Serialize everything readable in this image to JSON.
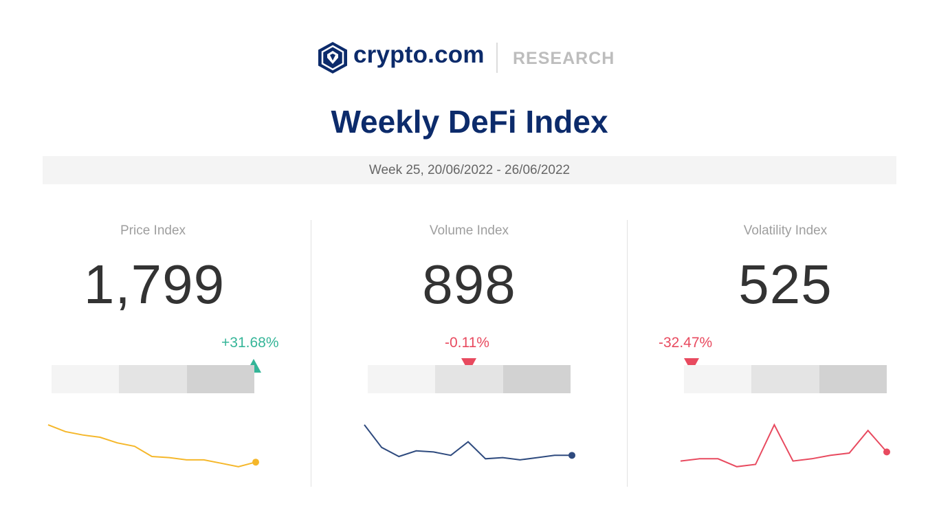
{
  "brand": {
    "name": "crypto.com",
    "section": "RESEARCH"
  },
  "title": "Weekly DeFi Index",
  "week": "Week 25, 20/06/2022 - 26/06/2022",
  "colors": {
    "navy": "#0c2b6b",
    "up": "#35b598",
    "down": "#e84a5f",
    "price_line": "#f5b72a",
    "volume_line": "#2e4a7e",
    "volatility_line": "#e84a5f"
  },
  "panels": [
    {
      "label": "Price Index",
      "value": "1,799",
      "change": "+31.68%",
      "direction": "up"
    },
    {
      "label": "Volume Index",
      "value": "898",
      "change": "-0.11%",
      "direction": "down"
    },
    {
      "label": "Volatility Index",
      "value": "525",
      "change": "-32.47%",
      "direction": "down"
    }
  ],
  "chart_data": [
    {
      "type": "line",
      "series": [
        {
          "values": [
            92,
            86,
            83,
            81,
            76,
            73,
            64,
            63,
            61,
            61,
            58,
            55,
            59
          ]
        }
      ],
      "marker_position_fraction": 1.0
    },
    {
      "type": "line",
      "series": [
        {
          "values": [
            92,
            72,
            64,
            69,
            68,
            65,
            77,
            62,
            63,
            61,
            63,
            65,
            65
          ]
        }
      ],
      "marker_position_fraction": 0.5
    },
    {
      "type": "line",
      "series": [
        {
          "values": [
            60,
            62,
            62,
            55,
            57,
            92,
            60,
            62,
            65,
            67,
            87,
            68
          ]
        }
      ],
      "marker_position_fraction": 0.04
    }
  ]
}
